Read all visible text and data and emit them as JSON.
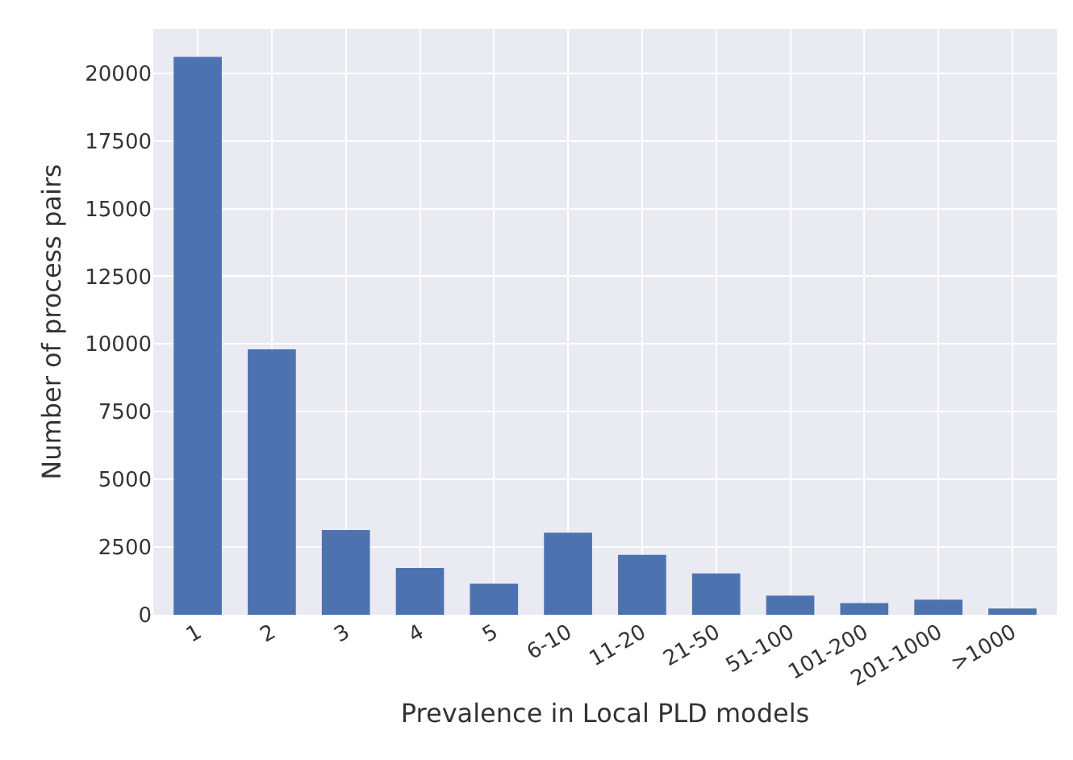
{
  "chart_data": {
    "type": "bar",
    "xlabel": "Prevalence in Local PLD models",
    "ylabel": "Number of process pairs",
    "categories": [
      "1",
      "2",
      "3",
      "4",
      "5",
      "6-10",
      "11-20",
      "21-50",
      "51-100",
      "101-200",
      "201-1000",
      ">1000"
    ],
    "values": [
      20600,
      9800,
      3130,
      1730,
      1150,
      3030,
      2210,
      1530,
      710,
      430,
      560,
      230
    ],
    "color": "#4c72b0",
    "ylim": [
      0,
      21630
    ],
    "yticks": [
      0,
      2500,
      5000,
      7500,
      10000,
      12500,
      15000,
      17500,
      20000
    ],
    "grid": true
  }
}
